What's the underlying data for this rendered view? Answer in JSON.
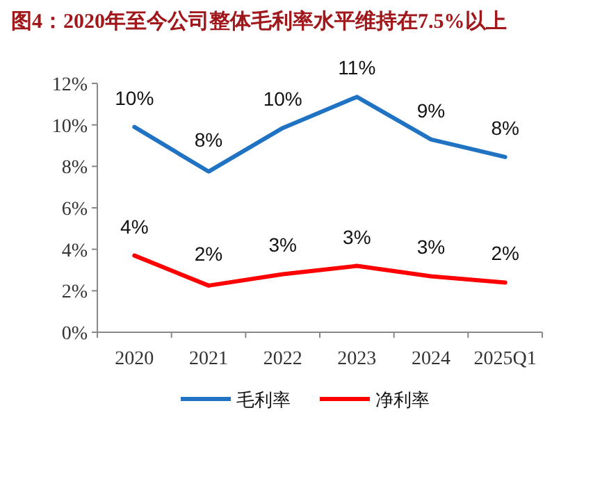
{
  "chart_data": {
    "type": "line",
    "title": "图4：2020年至今公司整体毛利率水平维持在7.5%以上",
    "categories": [
      "2020",
      "2021",
      "2022",
      "2023",
      "2024",
      "2025Q1"
    ],
    "series": [
      {
        "name": "毛利率",
        "color": "#1f73c2",
        "values": [
          9.9,
          7.75,
          9.85,
          11.35,
          9.3,
          8.45
        ],
        "value_labels": [
          "10%",
          "8%",
          "10%",
          "11%",
          "9%",
          "8%"
        ]
      },
      {
        "name": "净利率",
        "color": "#ff0000",
        "values": [
          3.7,
          2.25,
          2.8,
          3.2,
          2.7,
          2.4
        ],
        "value_labels": [
          "4%",
          "2%",
          "3%",
          "3%",
          "3%",
          "2%"
        ]
      }
    ],
    "ylim": [
      0,
      12
    ],
    "yticks": [
      {
        "value": 0,
        "label": "0%"
      },
      {
        "value": 2,
        "label": "2%"
      },
      {
        "value": 4,
        "label": "4%"
      },
      {
        "value": 6,
        "label": "6%"
      },
      {
        "value": 8,
        "label": "8%"
      },
      {
        "value": 10,
        "label": "10%"
      },
      {
        "value": 12,
        "label": "12%"
      }
    ],
    "grid": false,
    "legend": "bottom",
    "marker": "none",
    "line_style": "solid"
  }
}
